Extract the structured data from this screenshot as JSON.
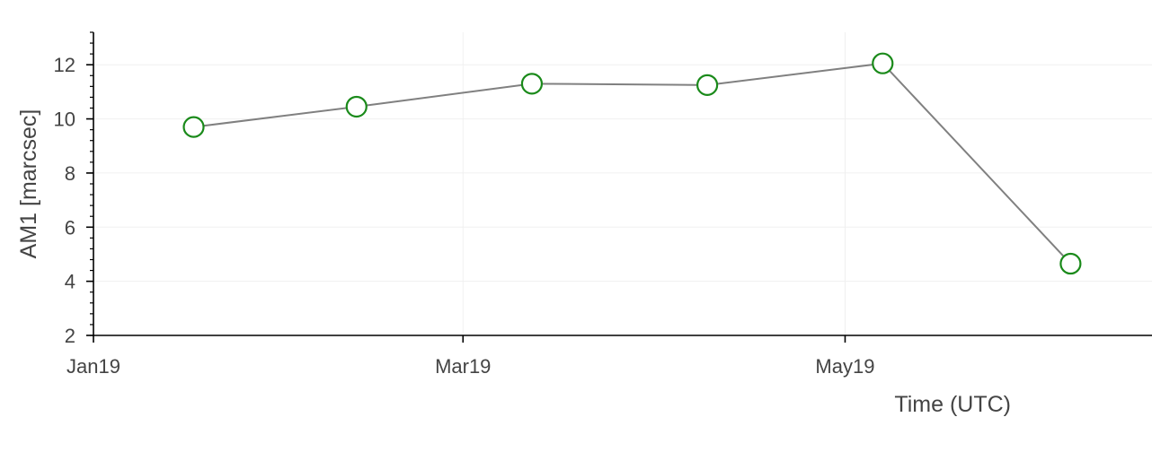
{
  "chart_data": {
    "type": "line",
    "xlabel": "Time (UTC)",
    "ylabel": "AM1 [marcsec]",
    "x_axis": {
      "type": "date",
      "range": [
        "2019-01-01",
        "2019-06-19"
      ],
      "ticks": [
        {
          "date": "2019-01-01",
          "label": "Jan19"
        },
        {
          "date": "2019-03-01",
          "label": "Mar19"
        },
        {
          "date": "2019-05-01",
          "label": "May19"
        }
      ]
    },
    "y_axis": {
      "range": [
        2,
        13.2
      ],
      "ticks": [
        2,
        4,
        6,
        8,
        10,
        12
      ],
      "minor_step": 0.4
    },
    "grid": true,
    "series": [
      {
        "x": [
          "2019-01-17",
          "2019-02-12",
          "2019-03-12",
          "2019-04-09",
          "2019-05-07",
          "2019-06-06"
        ],
        "values": [
          9.7,
          10.45,
          11.3,
          11.25,
          12.05,
          4.65
        ],
        "line_color": "#808080",
        "marker_color": "#1a8a1a"
      }
    ]
  }
}
